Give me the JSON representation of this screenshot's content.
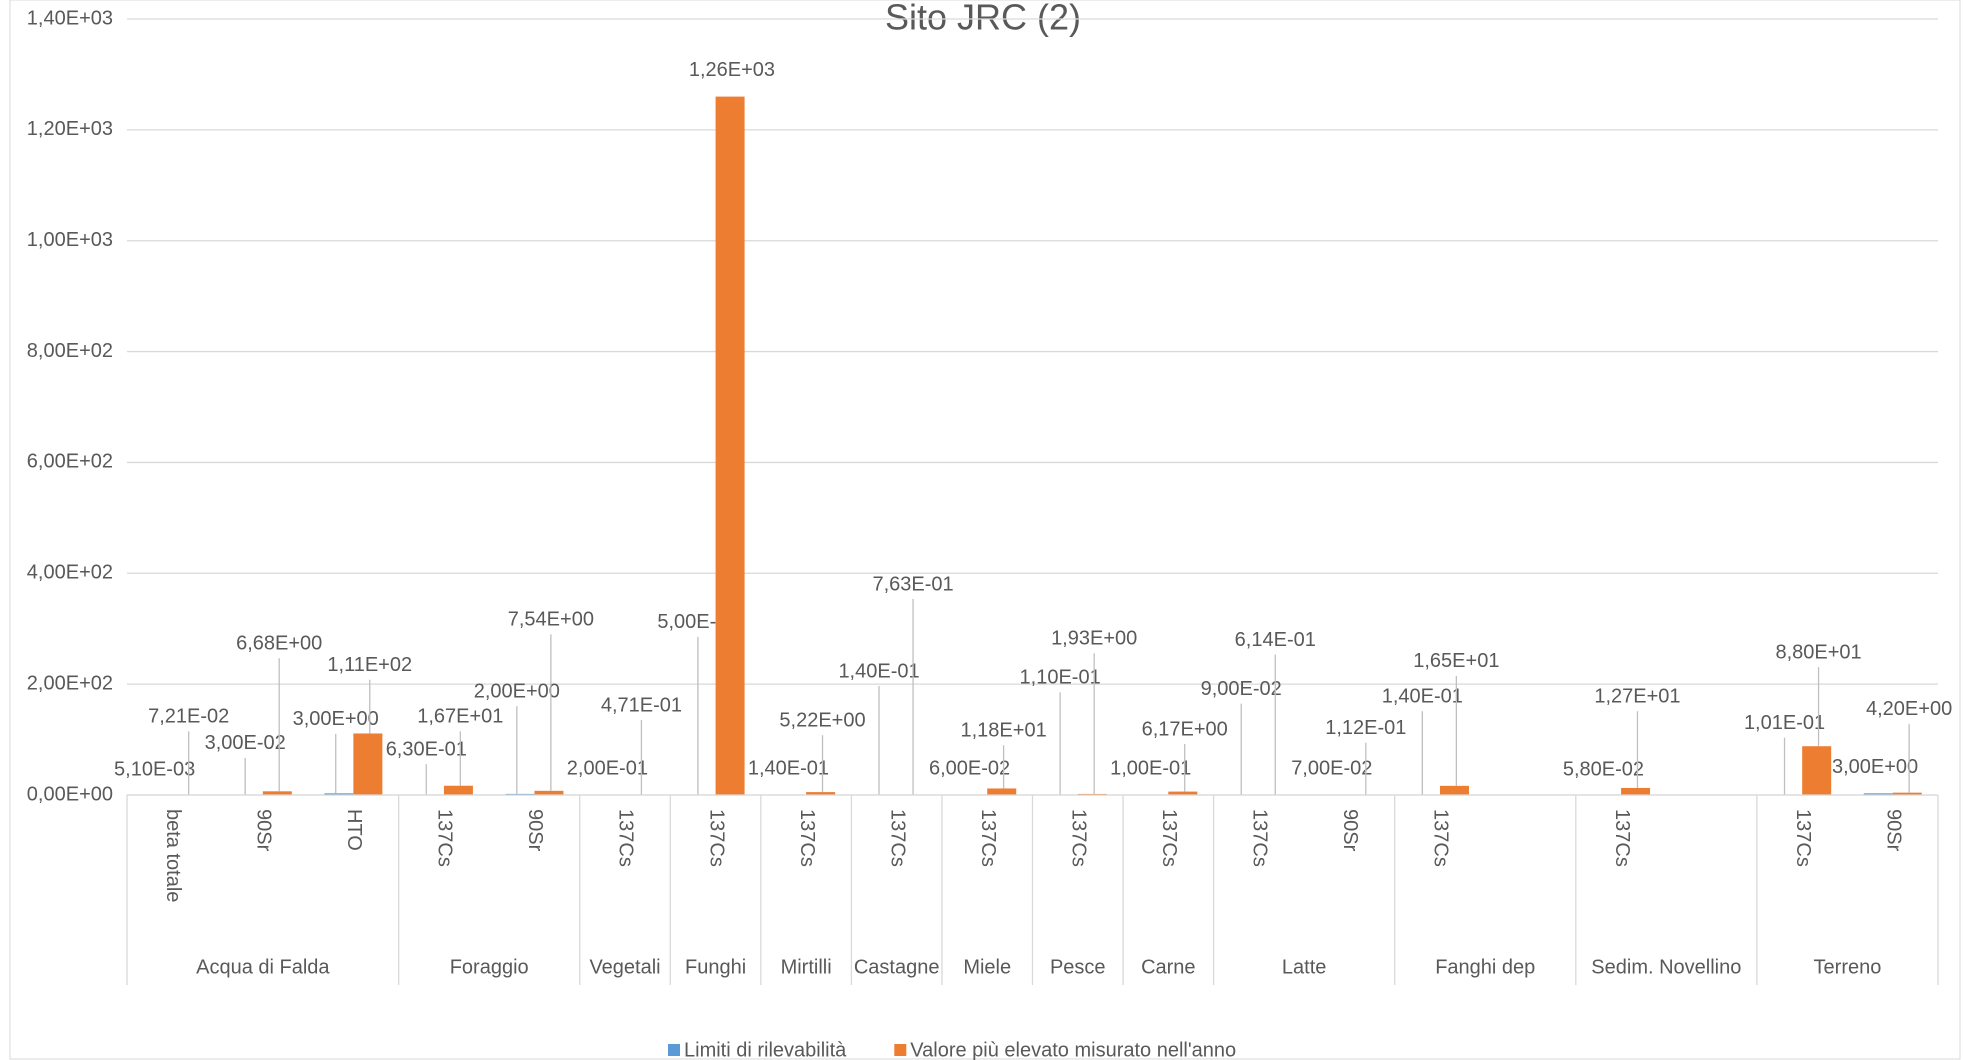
{
  "chart_data": {
    "type": "bar",
    "title": "Sito JRC (2)",
    "categories": [
      "beta totale",
      "90Sr",
      "HTO",
      "137Cs",
      "90Sr",
      "137Cs",
      "137Cs",
      "137Cs",
      "137Cs",
      "137Cs",
      "137Cs",
      "137Cs",
      "137Cs",
      "90Sr",
      "137Cs",
      null,
      "137Cs",
      null,
      "137Cs",
      "90Sr"
    ],
    "groups": [
      {
        "label": "Acqua di Falda",
        "count": 3
      },
      {
        "label": "Foraggio",
        "count": 2
      },
      {
        "label": "Vegetali",
        "count": 1
      },
      {
        "label": "Funghi",
        "count": 1
      },
      {
        "label": "Mirtilli",
        "count": 1
      },
      {
        "label": "Castagne",
        "count": 1
      },
      {
        "label": "Miele",
        "count": 1
      },
      {
        "label": "Pesce",
        "count": 1
      },
      {
        "label": "Carne",
        "count": 1
      },
      {
        "label": "Latte",
        "count": 2
      },
      {
        "label": "Fanghi dep",
        "count": 2
      },
      {
        "label": "Sedim. Novellino",
        "count": 2
      },
      {
        "label": "Terreno",
        "count": 2
      }
    ],
    "series": [
      {
        "name": "Limiti di rilevabilità",
        "color": "#5b9bd5",
        "values": [
          0.0051,
          0.03,
          3.0,
          0.63,
          2.0,
          0.2,
          0.5,
          0.14,
          0.14,
          0.06,
          0.11,
          0.1,
          0.09,
          0.07,
          0.14,
          null,
          0.058,
          null,
          0.101,
          3.0
        ],
        "value_labels": [
          "5,10E-03",
          "3,00E-02",
          "3,00E+00",
          "6,30E-01",
          "2,00E+00",
          "2,00E-01",
          "5,00E-01",
          "1,40E-01",
          "1,40E-01",
          "6,00E-02",
          "1,10E-01",
          "1,00E-01",
          "9,00E-02",
          "7,00E-02",
          "1,40E-01",
          null,
          "5,80E-02",
          null,
          "1,01E-01",
          "3,00E+00"
        ]
      },
      {
        "name": "Valore più elevato misurato nell'anno",
        "color": "#ed7d31",
        "values": [
          0.0721,
          6.68,
          111,
          16.7,
          7.54,
          0.471,
          1260,
          5.22,
          0.763,
          11.8,
          1.93,
          6.17,
          0.614,
          0.112,
          16.5,
          null,
          12.7,
          null,
          88.0,
          4.2
        ],
        "value_labels": [
          "7,21E-02",
          "6,68E+00",
          "1,11E+02",
          "1,67E+01",
          "7,54E+00",
          "4,71E-01",
          "1,26E+03",
          "5,22E+00",
          "7,63E-01",
          "1,18E+01",
          "1,93E+00",
          "6,17E+00",
          "6,14E-01",
          "1,12E-01",
          "1,65E+01",
          null,
          "1,27E+01",
          null,
          "8,80E+01",
          "4,20E+00"
        ]
      }
    ],
    "ylim": [
      0,
      1400
    ],
    "yticks": [
      {
        "value": 0,
        "label": "0,00E+00"
      },
      {
        "value": 200,
        "label": "2,00E+02"
      },
      {
        "value": 400,
        "label": "4,00E+02"
      },
      {
        "value": 600,
        "label": "6,00E+02"
      },
      {
        "value": 800,
        "label": "8,00E+02"
      },
      {
        "value": 1000,
        "label": "1,00E+03"
      },
      {
        "value": 1200,
        "label": "1,20E+03"
      },
      {
        "value": 1400,
        "label": "1,40E+03"
      }
    ],
    "grid": true,
    "legend": "bottom"
  }
}
